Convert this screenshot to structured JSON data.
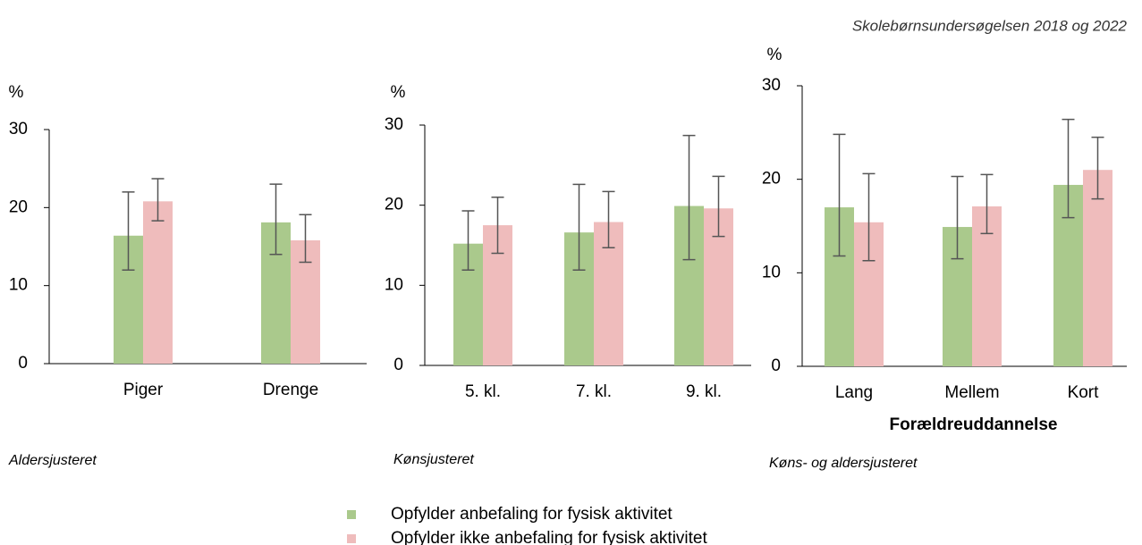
{
  "source": "Skolebørnsundersøgelsen 2018 og 2022",
  "chart_data": [
    {
      "type": "bar",
      "ylabel": "%",
      "note": "Aldersjusteret",
      "categories": [
        "Piger",
        "Drenge"
      ],
      "ylim": [
        0,
        30
      ],
      "yticks": [
        0,
        10,
        20,
        30
      ],
      "series": [
        {
          "name": "Opfylder anbefaling for fysisk aktivitet",
          "color": "#aac98c",
          "values": [
            16.4,
            18.1
          ],
          "ci_low": [
            12,
            14
          ],
          "ci_high": [
            22,
            23
          ]
        },
        {
          "name": "Opfylder ikke anbefaling for fysisk aktivitet",
          "color": "#efbcbc",
          "values": [
            20.8,
            15.8
          ],
          "ci_low": [
            18.3,
            13
          ],
          "ci_high": [
            23.7,
            19.1
          ]
        }
      ]
    },
    {
      "type": "bar",
      "ylabel": "%",
      "note": "Kønsjusteret",
      "categories": [
        "5. kl.",
        "7. kl.",
        "9. kl."
      ],
      "ylim": [
        0,
        30
      ],
      "yticks": [
        0,
        10,
        20,
        30
      ],
      "series": [
        {
          "name": "Opfylder anbefaling for fysisk aktivitet",
          "color": "#aac98c",
          "values": [
            15.2,
            16.6,
            19.9
          ],
          "ci_low": [
            11.9,
            11.9,
            13.2
          ],
          "ci_high": [
            19.3,
            22.6,
            28.7
          ]
        },
        {
          "name": "Opfylder ikke anbefaling for fysisk aktivitet",
          "color": "#efbcbc",
          "values": [
            17.5,
            17.9,
            19.6
          ],
          "ci_low": [
            14,
            14.7,
            16.1
          ],
          "ci_high": [
            21,
            21.7,
            23.6
          ]
        }
      ]
    },
    {
      "type": "bar",
      "ylabel": "%",
      "xlabel": "Forældreuddannelse",
      "note": "Køns- og aldersjusteret",
      "categories": [
        "Lang",
        "Mellem",
        "Kort"
      ],
      "ylim": [
        0,
        30
      ],
      "yticks": [
        0,
        10,
        20,
        30
      ],
      "series": [
        {
          "name": "Opfylder anbefaling for fysisk aktivitet",
          "color": "#aac98c",
          "values": [
            17,
            14.9,
            19.4
          ],
          "ci_low": [
            11.8,
            11.5,
            15.9
          ],
          "ci_high": [
            24.8,
            20.3,
            26.4
          ]
        },
        {
          "name": "Opfylder ikke anbefaling for fysisk aktivitet",
          "color": "#efbcbc",
          "values": [
            15.4,
            17.1,
            21
          ],
          "ci_low": [
            11.3,
            14.2,
            17.9
          ],
          "ci_high": [
            20.6,
            20.5,
            24.5
          ]
        }
      ]
    }
  ]
}
